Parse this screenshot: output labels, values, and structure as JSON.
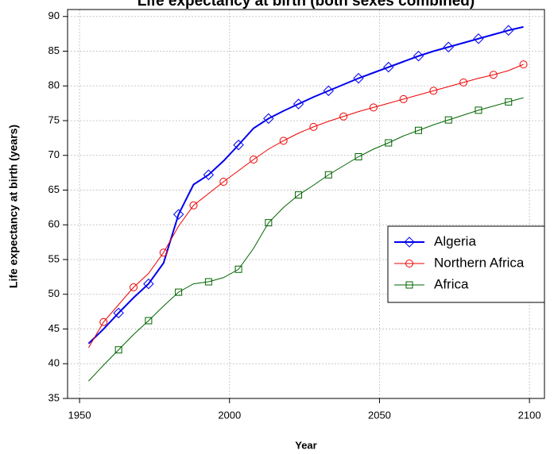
{
  "chart_data": {
    "type": "line",
    "title": "Life expectancy at birth (both sexes combined)",
    "x_label": "Year",
    "y_label": "Life expectancy at birth (years)",
    "x": [
      1953,
      1958,
      1963,
      1968,
      1973,
      1978,
      1983,
      1988,
      1993,
      1998,
      2003,
      2008,
      2013,
      2018,
      2023,
      2028,
      2033,
      2038,
      2043,
      2048,
      2053,
      2058,
      2063,
      2068,
      2073,
      2078,
      2083,
      2088,
      2093,
      2098
    ],
    "series": [
      {
        "name": "Algeria",
        "color": "#0000ee",
        "marker": "diamond",
        "values": [
          42.9,
          45,
          47.3,
          49.5,
          51.5,
          54.5,
          61.5,
          65.8,
          67.2,
          69.2,
          71.5,
          73.9,
          75.3,
          76.4,
          77.4,
          78.4,
          79.3,
          80.2,
          81.1,
          81.9,
          82.7,
          83.5,
          84.3,
          85,
          85.6,
          86.2,
          86.8,
          87.4,
          88,
          88.5
        ]
      },
      {
        "name": "Northern Africa",
        "color": "#ee0000",
        "marker": "circle",
        "values": [
          42.3,
          46,
          48.5,
          51,
          53,
          56,
          59.8,
          62.8,
          64.5,
          66.2,
          67.8,
          69.4,
          70.9,
          72.1,
          73.2,
          74.1,
          74.9,
          75.6,
          76.3,
          76.9,
          77.5,
          78.1,
          78.7,
          79.3,
          79.9,
          80.5,
          81.1,
          81.6,
          82.2,
          83.1
        ]
      },
      {
        "name": "Africa",
        "color": "#006400",
        "marker": "square",
        "values": [
          37.5,
          39.8,
          42,
          44.2,
          46.2,
          48.3,
          50.3,
          51.5,
          51.8,
          52.4,
          53.6,
          56.6,
          60.3,
          62.5,
          64.3,
          65.7,
          67.2,
          68.5,
          69.8,
          70.9,
          71.8,
          72.8,
          73.6,
          74.4,
          75.1,
          75.8,
          76.5,
          77.1,
          77.7,
          78.3
        ]
      }
    ],
    "xlim": [
      1946,
      2105
    ],
    "ylim": [
      35,
      91
    ],
    "xticks": [
      1950,
      2000,
      2050,
      2100
    ],
    "yticks": [
      35,
      40,
      45,
      50,
      55,
      60,
      65,
      70,
      75,
      80,
      85,
      90
    ],
    "grid": true,
    "legend": "right"
  }
}
